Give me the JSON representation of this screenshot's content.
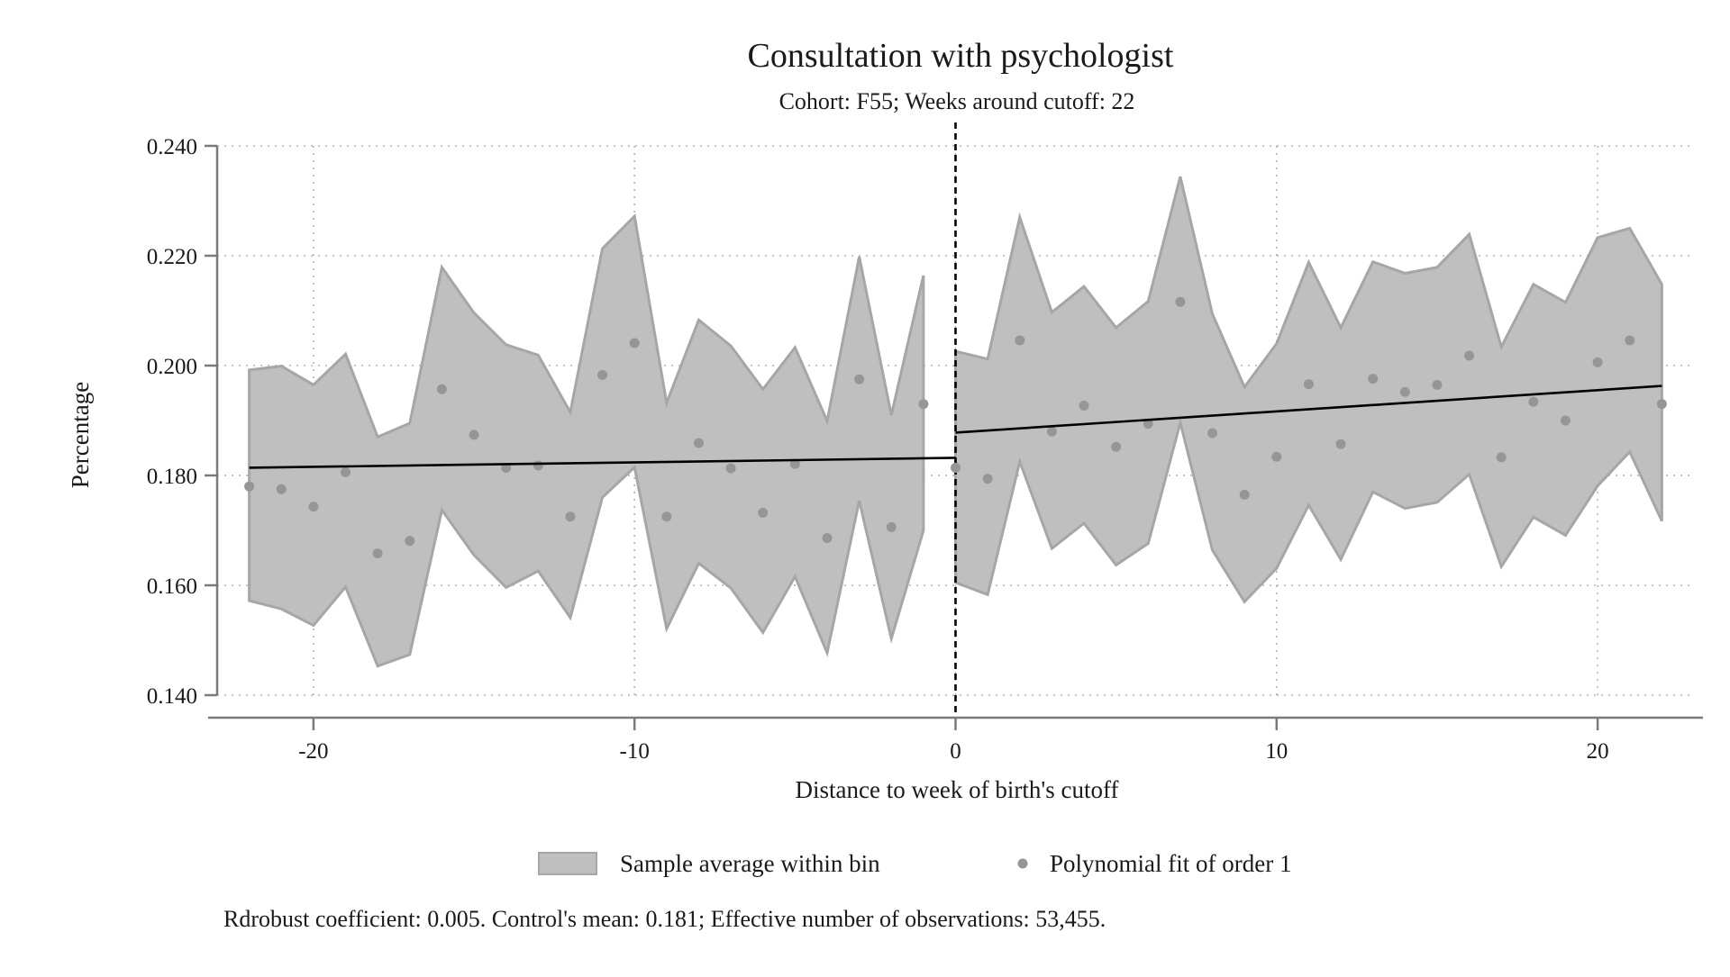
{
  "chart_data": {
    "type": "scatter",
    "title": "Consultation with psychologist",
    "subtitle": "Cohort: F55; Weeks around cutoff: 22",
    "xlabel": "Distance to week of birth's cutoff",
    "ylabel": "Percentage",
    "xlim": [
      -23,
      23
    ],
    "ylim": [
      0.14,
      0.24
    ],
    "x_ticks": [
      -20,
      -10,
      0,
      10,
      20
    ],
    "y_ticks": [
      0.14,
      0.16,
      0.18,
      0.2,
      0.22,
      0.24
    ],
    "x_tick_labels": [
      "-20",
      "-10",
      "0",
      "10",
      "20"
    ],
    "y_tick_labels": [
      "0.140",
      "0.160",
      "0.180",
      "0.200",
      "0.220",
      "0.240"
    ],
    "grid": true,
    "cutoff": 0,
    "legend_position": "bottom",
    "legend": {
      "band_label": "Sample average within bin",
      "points_label": "Polynomial fit of order 1"
    },
    "note": "Rdrobust coefficient: 0.005. Control's mean: 0.181; Effective number of observations: 53,455.",
    "colors": {
      "band_fill": "#bfbfbf",
      "band_edge": "#a6a6a6",
      "points": "#969696",
      "fit_line": "#000000",
      "axis": "#7a7a7a",
      "grid": "#b0b0b0"
    },
    "points": {
      "x": [
        -22,
        -21,
        -20,
        -19,
        -18,
        -17,
        -16,
        -15,
        -14,
        -13,
        -12,
        -11,
        -10,
        -9,
        -8,
        -7,
        -6,
        -5,
        -4,
        -3,
        -2,
        -1,
        0,
        1,
        2,
        3,
        4,
        5,
        6,
        7,
        8,
        9,
        10,
        11,
        12,
        13,
        14,
        15,
        16,
        17,
        18,
        19,
        20,
        21,
        22
      ],
      "y": [
        0.178,
        0.1775,
        0.1743,
        0.1806,
        0.1658,
        0.1681,
        0.1957,
        0.1874,
        0.1814,
        0.1818,
        0.1725,
        0.1983,
        0.2041,
        0.1725,
        0.1859,
        0.1813,
        0.1732,
        0.1821,
        0.1686,
        0.1975,
        0.1706,
        0.193,
        0.1814,
        0.1794,
        0.2046,
        0.188,
        0.1927,
        0.1852,
        0.1894,
        0.2116,
        0.1877,
        0.1765,
        0.1834,
        0.1966,
        0.1857,
        0.1976,
        0.1952,
        0.1965,
        0.2018,
        0.1833,
        0.1934,
        0.19,
        0.2006,
        0.2046,
        0.193
      ]
    },
    "band_left": {
      "x": [
        -22,
        -21,
        -20,
        -19,
        -18,
        -17,
        -16,
        -15,
        -14,
        -13,
        -12,
        -11,
        -10,
        -9,
        -8,
        -7,
        -6,
        -5,
        -4,
        -3,
        -2,
        -1
      ],
      "upper": [
        0.1992,
        0.1999,
        0.1965,
        0.2021,
        0.187,
        0.1895,
        0.2179,
        0.2096,
        0.2038,
        0.2019,
        0.1915,
        0.2213,
        0.2272,
        0.1932,
        0.2083,
        0.2036,
        0.1957,
        0.2033,
        0.1899,
        0.2198,
        0.191,
        0.2164
      ],
      "lower": [
        0.1572,
        0.1557,
        0.1527,
        0.1597,
        0.1453,
        0.1474,
        0.1737,
        0.1655,
        0.1596,
        0.1626,
        0.1541,
        0.176,
        0.1815,
        0.1521,
        0.164,
        0.1595,
        0.1514,
        0.1616,
        0.1477,
        0.1754,
        0.1503,
        0.17
      ]
    },
    "band_right": {
      "x": [
        0,
        1,
        2,
        3,
        4,
        5,
        6,
        7,
        8,
        9,
        10,
        11,
        12,
        13,
        14,
        15,
        16,
        17,
        18,
        19,
        20,
        21,
        22
      ],
      "upper": [
        0.2026,
        0.2012,
        0.227,
        0.2097,
        0.2144,
        0.2069,
        0.2117,
        0.2344,
        0.2094,
        0.1961,
        0.204,
        0.2188,
        0.2069,
        0.2189,
        0.2168,
        0.2179,
        0.2239,
        0.2034,
        0.2148,
        0.2115,
        0.2233,
        0.225,
        0.2148
      ],
      "lower": [
        0.1605,
        0.1583,
        0.1825,
        0.1667,
        0.1713,
        0.1637,
        0.1676,
        0.1896,
        0.1664,
        0.157,
        0.1631,
        0.1746,
        0.1647,
        0.177,
        0.174,
        0.1751,
        0.1802,
        0.1634,
        0.1724,
        0.1691,
        0.1781,
        0.1843,
        0.1717
      ]
    },
    "fit_left": {
      "x": [
        -22,
        0
      ],
      "y": [
        0.1814,
        0.1832
      ]
    },
    "fit_right": {
      "x": [
        0,
        22
      ],
      "y": [
        0.1878,
        0.1963
      ]
    }
  }
}
